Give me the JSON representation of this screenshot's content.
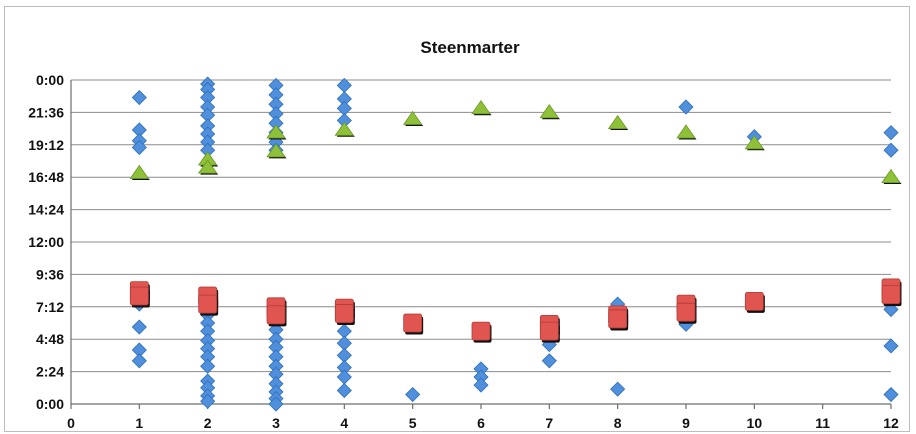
{
  "chart_data": {
    "type": "scatter",
    "title": "Steenmarter",
    "xlabel": "",
    "ylabel": "",
    "xlim": [
      0,
      12
    ],
    "ylim": [
      0,
      24
    ],
    "x_ticks": [
      "0",
      "1",
      "2",
      "3",
      "4",
      "5",
      "6",
      "7",
      "8",
      "9",
      "10",
      "11",
      "12"
    ],
    "y_ticks": [
      {
        "label": "0:00",
        "value": 0
      },
      {
        "label": "2:24",
        "value": 2.4
      },
      {
        "label": "4:48",
        "value": 4.8
      },
      {
        "label": "7:12",
        "value": 7.2
      },
      {
        "label": "9:36",
        "value": 9.6
      },
      {
        "label": "12:00",
        "value": 12
      },
      {
        "label": "14:24",
        "value": 14.4
      },
      {
        "label": "16:48",
        "value": 16.8
      },
      {
        "label": "19:12",
        "value": 19.2
      },
      {
        "label": "21:36",
        "value": 21.6
      },
      {
        "label": "0:00",
        "value": 24
      }
    ],
    "grid": "horizontal",
    "colors": {
      "diamond": "#4f8fdc",
      "triangle": "#8fc03a",
      "square": "#e05550"
    },
    "series": [
      {
        "marker": "diamond",
        "points": [
          [
            1,
            22.7
          ],
          [
            1,
            20.3
          ],
          [
            1,
            19.5
          ],
          [
            1,
            19.0
          ],
          [
            1,
            7.4
          ],
          [
            1,
            5.7
          ],
          [
            1,
            4.0
          ],
          [
            1,
            3.2
          ],
          [
            2,
            23.7
          ],
          [
            2,
            23.3
          ],
          [
            2,
            22.7
          ],
          [
            2,
            22.0
          ],
          [
            2,
            21.4
          ],
          [
            2,
            20.6
          ],
          [
            2,
            20.0
          ],
          [
            2,
            19.4
          ],
          [
            2,
            18.8
          ],
          [
            2,
            7.3
          ],
          [
            2,
            6.6
          ],
          [
            2,
            6.0
          ],
          [
            2,
            5.4
          ],
          [
            2,
            4.7
          ],
          [
            2,
            4.1
          ],
          [
            2,
            3.5
          ],
          [
            2,
            2.8
          ],
          [
            2,
            1.7
          ],
          [
            2,
            1.2
          ],
          [
            2,
            0.6
          ],
          [
            2,
            0.2
          ],
          [
            3,
            23.6
          ],
          [
            3,
            22.9
          ],
          [
            3,
            22.2
          ],
          [
            3,
            21.5
          ],
          [
            3,
            20.8
          ],
          [
            3,
            20.1
          ],
          [
            3,
            19.4
          ],
          [
            3,
            18.8
          ],
          [
            3,
            5.5
          ],
          [
            3,
            4.8
          ],
          [
            3,
            4.2
          ],
          [
            3,
            3.5
          ],
          [
            3,
            2.8
          ],
          [
            3,
            2.2
          ],
          [
            3,
            1.5
          ],
          [
            3,
            0.9
          ],
          [
            3,
            0.4
          ],
          [
            3,
            0.0
          ],
          [
            4,
            23.6
          ],
          [
            4,
            22.6
          ],
          [
            4,
            21.9
          ],
          [
            4,
            21.0
          ],
          [
            4,
            5.4
          ],
          [
            4,
            4.5
          ],
          [
            4,
            3.6
          ],
          [
            4,
            2.7
          ],
          [
            4,
            2.0
          ],
          [
            4,
            1.0
          ],
          [
            5,
            0.7
          ],
          [
            6,
            2.6
          ],
          [
            6,
            2.0
          ],
          [
            6,
            1.4
          ],
          [
            7,
            4.4
          ],
          [
            7,
            3.2
          ],
          [
            8,
            7.4
          ],
          [
            8,
            1.1
          ],
          [
            9,
            22.0
          ],
          [
            9,
            5.9
          ],
          [
            10,
            19.8
          ],
          [
            12,
            20.1
          ],
          [
            12,
            18.8
          ],
          [
            12,
            7.0
          ],
          [
            12,
            4.3
          ],
          [
            12,
            0.7
          ]
        ]
      },
      {
        "marker": "triangle",
        "points": [
          [
            1,
            17.0
          ],
          [
            2,
            18.0
          ],
          [
            2,
            17.4
          ],
          [
            3,
            20.0
          ],
          [
            3,
            18.6
          ],
          [
            4,
            20.2
          ],
          [
            5,
            21.0
          ],
          [
            6,
            21.8
          ],
          [
            7,
            21.5
          ],
          [
            8,
            20.7
          ],
          [
            9,
            20.0
          ],
          [
            10,
            19.2
          ],
          [
            12,
            16.7
          ]
        ]
      },
      {
        "marker": "square",
        "points": [
          [
            1,
            8.4
          ],
          [
            1,
            8.0
          ],
          [
            2,
            8.0
          ],
          [
            2,
            7.4
          ],
          [
            3,
            7.2
          ],
          [
            3,
            6.6
          ],
          [
            4,
            7.1
          ],
          [
            4,
            6.7
          ],
          [
            5,
            6.0
          ],
          [
            6,
            5.4
          ],
          [
            7,
            5.9
          ],
          [
            7,
            5.4
          ],
          [
            8,
            6.6
          ],
          [
            8,
            6.3
          ],
          [
            9,
            7.4
          ],
          [
            9,
            6.8
          ],
          [
            10,
            7.6
          ],
          [
            12,
            8.6
          ],
          [
            12,
            8.1
          ]
        ]
      }
    ]
  }
}
